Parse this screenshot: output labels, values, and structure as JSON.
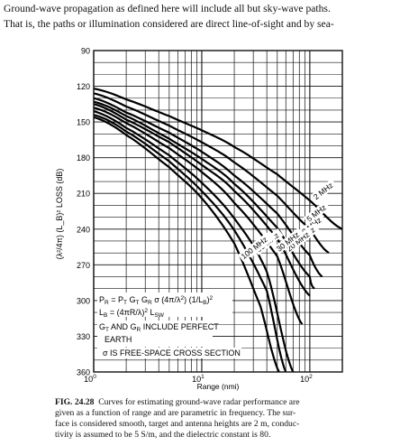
{
  "intro": {
    "line1": "Ground-wave propagation as defined here will include all but sky-wave paths.",
    "line2": "That is, the paths or illumination considered are direct line-of-sight and by sea-"
  },
  "chart_data": {
    "type": "line",
    "title": "",
    "xlabel": "Range (nmi)",
    "ylabel": "(λ²/4π) (L_B)² LOSS (dB)",
    "x_scale": "log",
    "xlim": [
      1,
      200
    ],
    "ylim": [
      90,
      360
    ],
    "y_inverted": true,
    "x_tick_labels": [
      {
        "value": 1,
        "base": "10",
        "exp": "0"
      },
      {
        "value": 10,
        "base": "10",
        "exp": "1"
      },
      {
        "value": 100,
        "base": "10",
        "exp": "2"
      }
    ],
    "y_ticks": [
      90,
      120,
      150,
      180,
      210,
      240,
      270,
      300,
      330,
      360
    ],
    "grid": true,
    "series": [
      {
        "name": "2 MHz",
        "x": [
          1,
          2,
          5,
          10,
          20,
          50,
          100,
          200
        ],
        "y": [
          122,
          131,
          145,
          157,
          171,
          194,
          216,
          240
        ]
      },
      {
        "name": "5 MHz",
        "x": [
          1,
          2,
          5,
          10,
          20,
          50,
          100,
          150
        ],
        "y": [
          126,
          137,
          153,
          167,
          184,
          212,
          240,
          260
        ]
      },
      {
        "name": "10 MHz",
        "x": [
          1,
          2,
          5,
          10,
          20,
          50,
          100,
          130
        ],
        "y": [
          130,
          142,
          159,
          175,
          195,
          227,
          262,
          280
        ]
      },
      {
        "name": "15 MHz",
        "x": [
          1,
          2,
          5,
          10,
          20,
          50,
          100,
          110
        ],
        "y": [
          133,
          145,
          164,
          181,
          202,
          239,
          280,
          290
        ]
      },
      {
        "name": "20 MHz",
        "x": [
          1,
          2,
          5,
          10,
          20,
          50,
          100
        ],
        "y": [
          135,
          148,
          167,
          186,
          208,
          248,
          296
        ]
      },
      {
        "name": "30 MHz",
        "x": [
          1,
          2,
          5,
          10,
          20,
          50,
          85
        ],
        "y": [
          138,
          151,
          172,
          192,
          218,
          263,
          320
        ]
      },
      {
        "name": "50 MHz",
        "x": [
          1,
          2,
          5,
          10,
          20,
          40,
          70
        ],
        "y": [
          141,
          155,
          178,
          201,
          231,
          276,
          360
        ]
      },
      {
        "name": "70 MHz",
        "x": [
          1,
          2,
          5,
          10,
          20,
          40,
          60
        ],
        "y": [
          144,
          158,
          183,
          208,
          241,
          292,
          360
        ]
      },
      {
        "name": "100 MHz",
        "x": [
          1,
          2,
          5,
          10,
          20,
          35,
          52
        ],
        "y": [
          146,
          161,
          188,
          214,
          252,
          305,
          360
        ]
      }
    ],
    "annotation": {
      "pr": "P",
      "pr_sub": "R",
      "pr_rest": " = P",
      "pt_sub": "T",
      "gt": " G",
      "gt_sub": "T",
      "gr": " G",
      "gr_sub": "R",
      "sigma": " σ (4π/λ",
      "sup2a": "2",
      "mid": ") (1/L",
      "lb_sub": "B",
      "close": ")",
      "sup2b": "2",
      "lb_line_a": "L",
      "lb_line_sub": "B",
      "lb_line_b": " = (4πR/λ)",
      "lb_line_sup": "2",
      "lb_line_c": " L",
      "lb_line_sub2": "SW",
      "gains_a": "G",
      "gains_sub1": "T",
      "gains_b": " AND G",
      "gains_sub2": "R",
      "gains_c": " INCLUDE PERFECT",
      "earth": "EARTH",
      "sigma_note": "σ IS FREE-SPACE CROSS SECTION"
    }
  },
  "caption": {
    "fig_label": "FIG. 24.28",
    "line1": "  Curves for estimating ground-wave radar performance are",
    "line2": "given as a function of range and are parametric in frequency. The sur-",
    "line3": "face is considered smooth, target and antenna heights are 2 m, conduc-",
    "line4": "tivity is assumed to be 5 S/m, and the dielectric constant is 80."
  }
}
